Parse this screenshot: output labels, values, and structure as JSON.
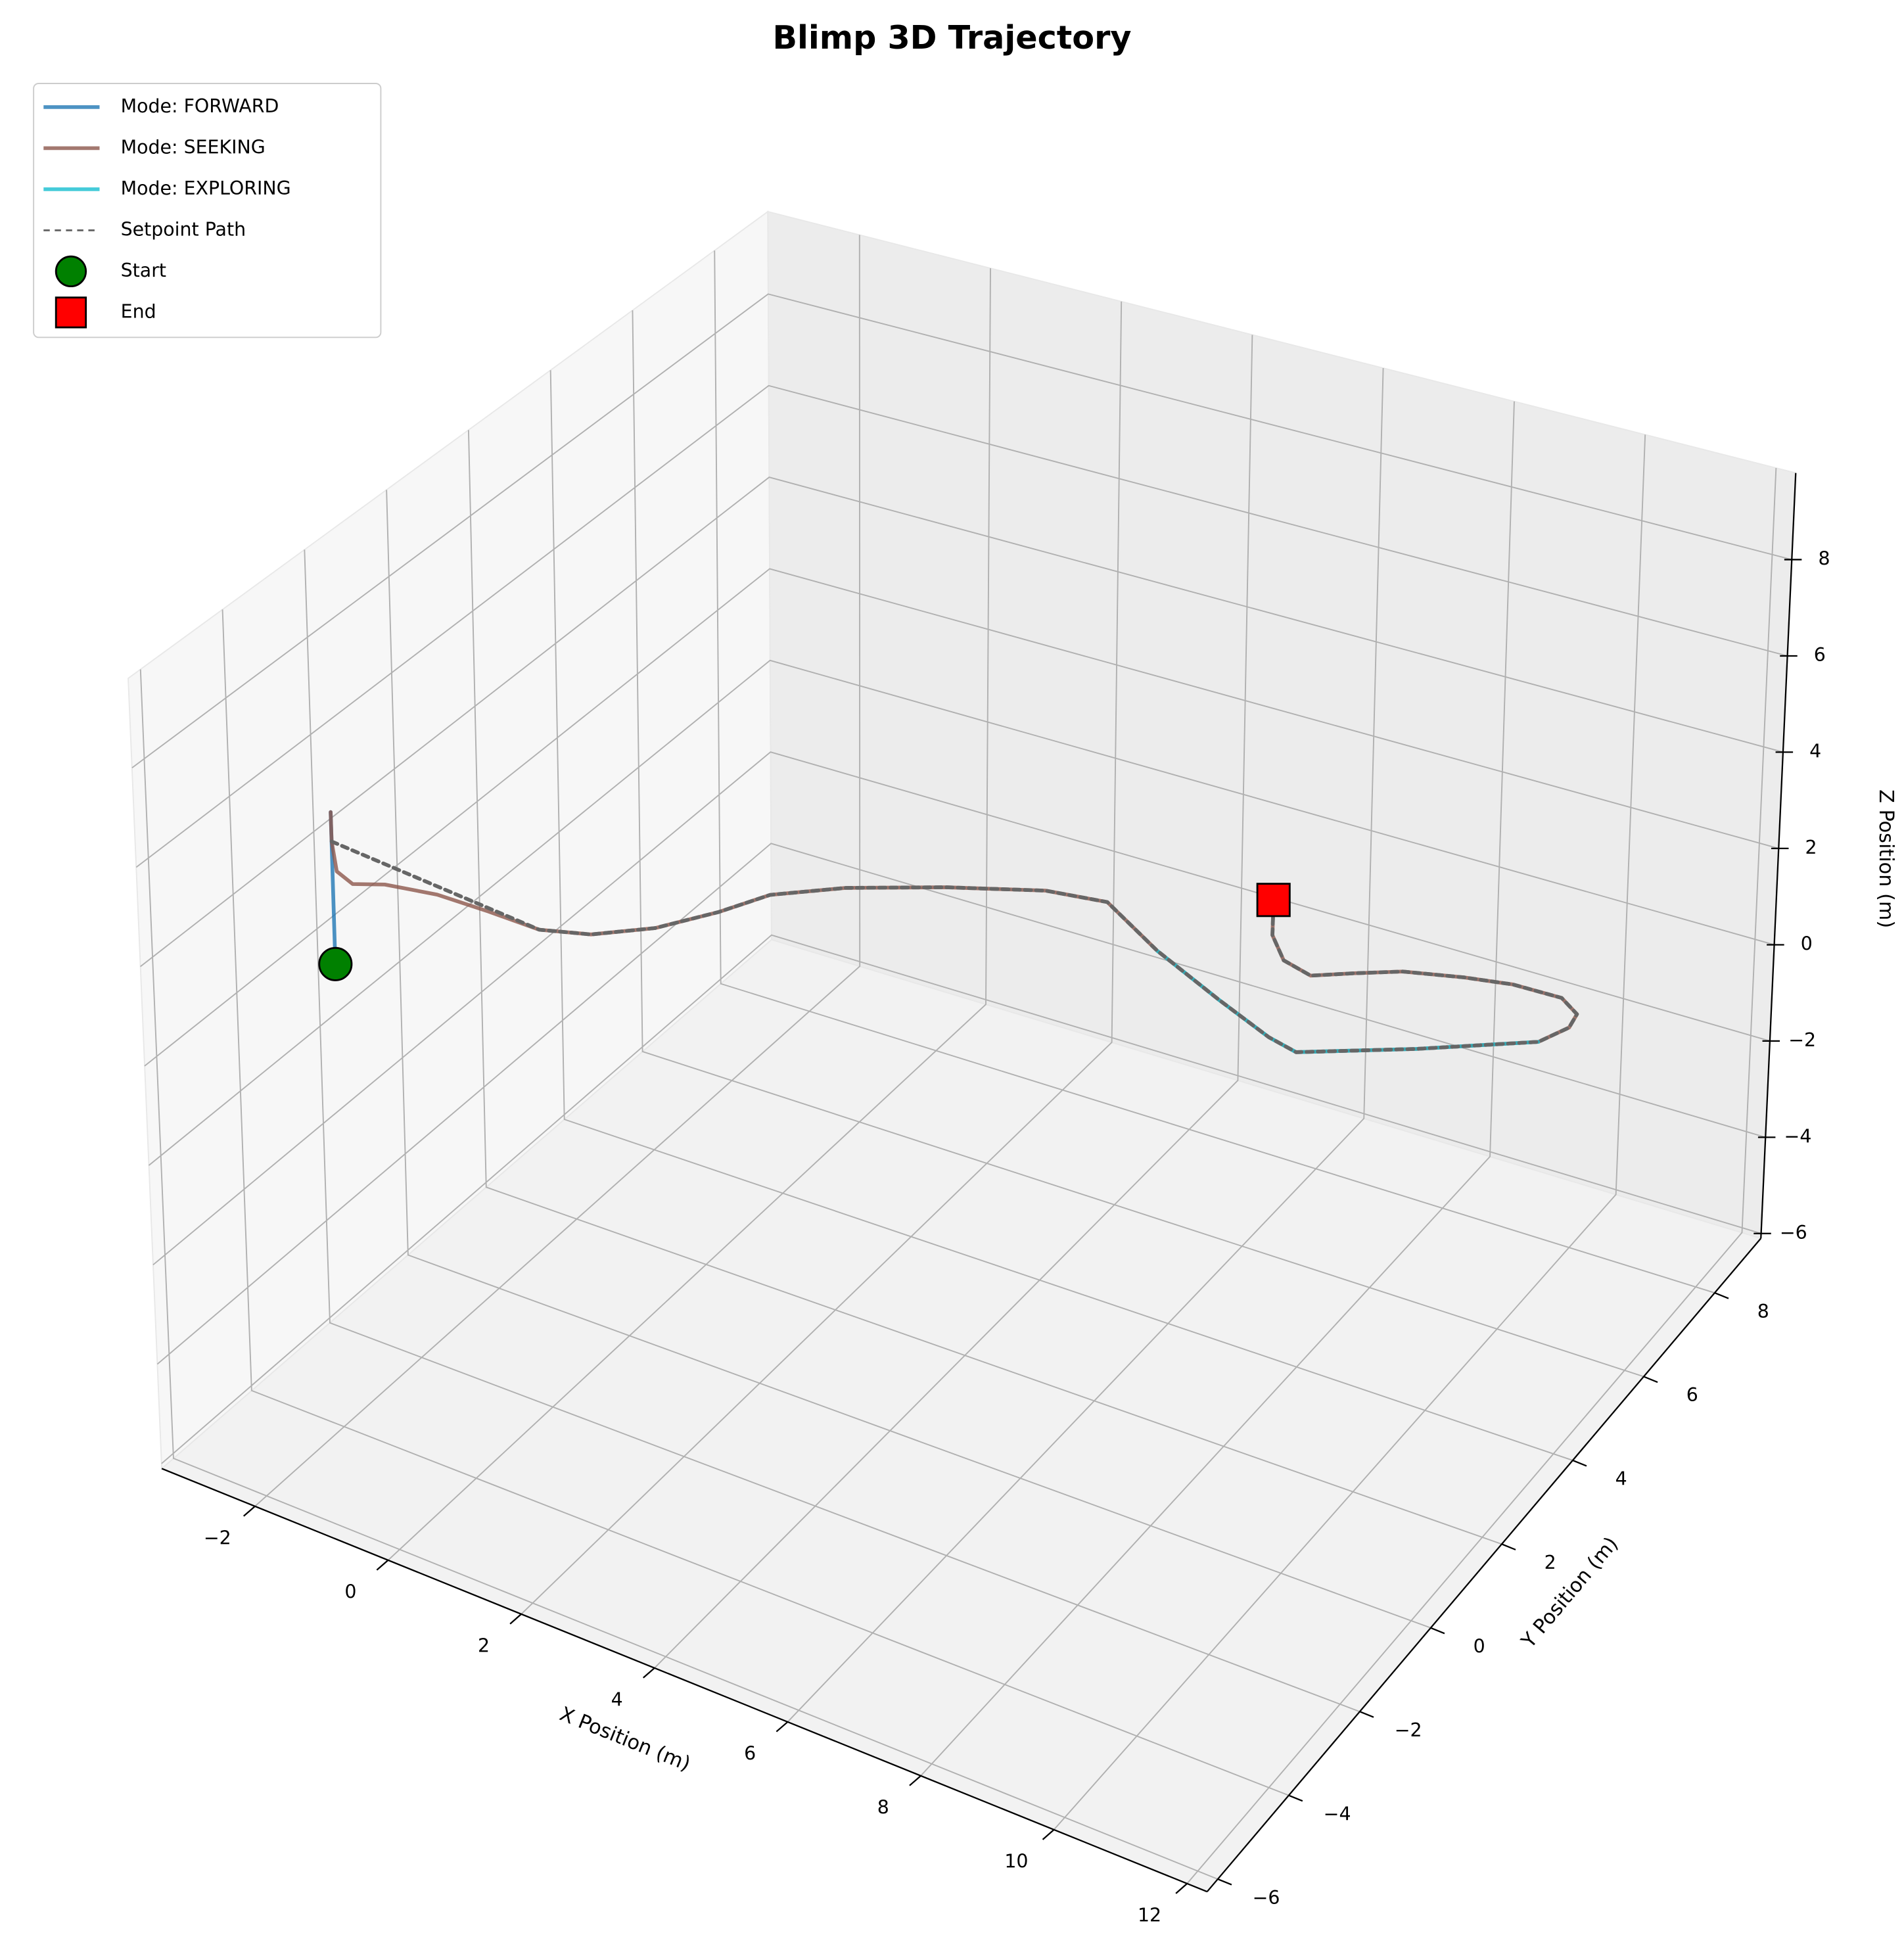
{
  "chart_data": {
    "type": "line3d",
    "title": "Blimp 3D Trajectory",
    "x_label": "X Position (m)",
    "y_label": "Y Position (m)",
    "z_label": "Z Position (m)",
    "xlim": [
      -3.4,
      12.3
    ],
    "ylim": [
      -6.3,
      9.3
    ],
    "zlim": [
      -6.1,
      9.8
    ],
    "xticks": [
      {
        "value": -2,
        "label": "−2"
      },
      0,
      2,
      4,
      6,
      8,
      10,
      12
    ],
    "yticks": [
      {
        "value": -6,
        "label": "−6"
      },
      {
        "value": -4,
        "label": "−4"
      },
      {
        "value": -2,
        "label": "−2"
      },
      0,
      2,
      4,
      6,
      8
    ],
    "zticks": [
      {
        "value": -6,
        "label": "−6"
      },
      {
        "value": -4,
        "label": "−4"
      },
      {
        "value": -2,
        "label": "−2"
      },
      0,
      2,
      4,
      6,
      8
    ],
    "grid": true,
    "legend": "upper left",
    "series": [
      {
        "name": "Mode: FORWARD",
        "color": "#1f77b4",
        "linestyle": "solid",
        "x": [
          -2.44,
          -2.44
        ],
        "y": [
          -3.14,
          -3.14
        ],
        "z": [
          2.5,
          5.6
        ]
      },
      {
        "name": "Mode: SEEKING",
        "color": "#8c564b",
        "linestyle": "solid",
        "x": [
          -2.44,
          -2.44,
          -2.02,
          -1.73,
          -1.46,
          -0.9,
          -0.27,
          0.38,
          0.88,
          1.35,
          1.71,
          1.95,
          2.54,
          3.45,
          4.42,
          5.14,
          6.19,
          7.35,
          8.3,
          8.78,
          10.14,
          11.5,
          11.71,
          11.66,
          11.3,
          10.57,
          9.91,
          9.12,
          8.57,
          8.09,
          7.6,
          7.18,
          6.78
        ],
        "y": [
          -3.14,
          -3.14,
          -3.73,
          -3.83,
          -3.49,
          -3.14,
          -2.94,
          -2.77,
          -2.32,
          -1.5,
          -0.48,
          0.42,
          1.35,
          2.39,
          3.32,
          3.7,
          3.19,
          2.8,
          2.45,
          2.33,
          3.16,
          4.06,
          4.53,
          4.84,
          5.07,
          5.04,
          4.88,
          4.62,
          4.28,
          3.96,
          4.1,
          4.54,
          5.27
        ],
        "z": [
          5.6,
          5.0,
          4.98,
          4.93,
          4.83,
          4.67,
          4.5,
          4.33,
          4.17,
          3.96,
          3.75,
          3.58,
          3.33,
          3.0,
          2.67,
          2.46,
          2.29,
          2.08,
          2,
          2,
          2,
          2,
          2,
          2,
          2,
          2,
          2,
          2,
          2,
          2,
          2,
          2,
          2
        ]
      },
      {
        "name": "Mode: EXPLORING",
        "color": "#17becf",
        "linestyle": "solid",
        "x": [
          6.19,
          7.35,
          8.3,
          8.78,
          10.14,
          11.5
        ],
        "y": [
          3.19,
          2.8,
          2.45,
          2.33,
          3.16,
          4.06
        ],
        "z": [
          2.29,
          2.08,
          2,
          2,
          2,
          2
        ]
      },
      {
        "name": "Setpoint Path",
        "color": "#666666",
        "linestyle": "dashed",
        "x": [
          -2.44,
          0.38,
          0.88,
          1.35,
          1.71,
          1.95,
          2.54,
          3.45,
          4.42,
          5.14,
          6.19,
          7.35,
          8.3,
          8.78,
          10.14,
          11.5,
          11.71,
          11.66,
          11.3,
          10.57,
          9.91,
          9.12,
          8.57,
          8.09,
          7.6,
          7.18,
          6.78
        ],
        "y": [
          -3.14,
          -2.77,
          -2.32,
          -1.5,
          -0.48,
          0.42,
          1.35,
          2.39,
          3.32,
          3.7,
          3.19,
          2.8,
          2.45,
          2.33,
          3.16,
          4.06,
          4.53,
          4.84,
          5.07,
          5.04,
          4.88,
          4.62,
          4.28,
          3.96,
          4.1,
          4.54,
          5.27
        ],
        "z": [
          5.0,
          4.33,
          4.17,
          3.96,
          3.75,
          3.58,
          3.33,
          3.0,
          2.67,
          2.46,
          2.29,
          2.08,
          2,
          2,
          2,
          2,
          2,
          2,
          2,
          2,
          2,
          2,
          2,
          2,
          2,
          2,
          2
        ]
      }
    ],
    "markers": [
      {
        "name": "Start",
        "color": "green",
        "shape": "circle",
        "x": -2.44,
        "y": -3.14,
        "z": 2.5
      },
      {
        "name": "End",
        "color": "red",
        "shape": "square",
        "x": 6.78,
        "y": 5.27,
        "z": 2
      }
    ]
  }
}
